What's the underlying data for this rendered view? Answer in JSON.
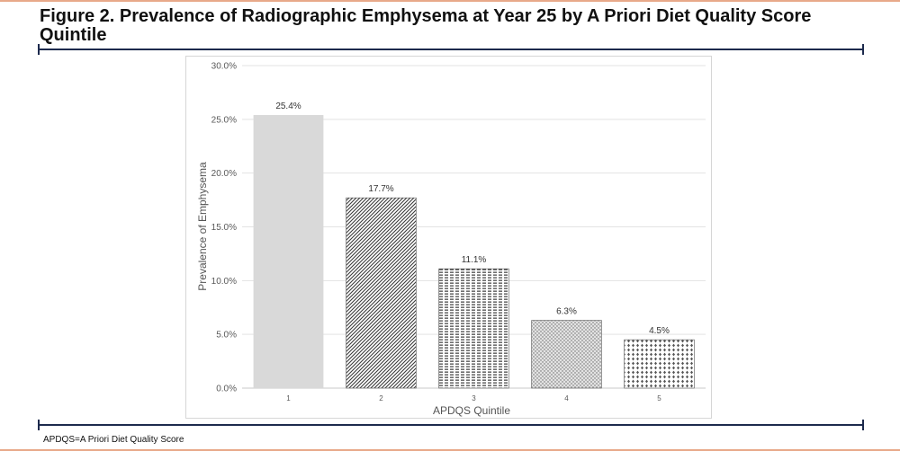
{
  "figure": {
    "title": "Figure 2. Prevalence of Radiographic Emphysema at Year 25 by A Priori Diet Quality Score Quintile",
    "footnote": "APDQS=A Priori Diet Quality Score"
  },
  "colors": {
    "rule": "#1d2a4d",
    "border_accent": "#e8a98a",
    "bar_fill": "#d9d9d9",
    "pattern_ink": "#3a3a3a"
  },
  "chart_data": {
    "type": "bar",
    "title": "",
    "xlabel": "APDQS Quintile",
    "ylabel": "Prevalence of Emphysema",
    "categories": [
      "1",
      "2",
      "3",
      "4",
      "5"
    ],
    "values": [
      25.4,
      17.7,
      11.1,
      6.3,
      4.5
    ],
    "data_labels": [
      "25.4%",
      "17.7%",
      "11.1%",
      "6.3%",
      "4.5%"
    ],
    "bar_patterns": [
      "solid",
      "diagonal-dense",
      "horizontal-dash",
      "dotted",
      "diamond-dots"
    ],
    "ylim": [
      0,
      30
    ],
    "yticks": [
      0,
      5,
      10,
      15,
      20,
      25,
      30
    ],
    "ytick_labels": [
      "0.0%",
      "5.0%",
      "10.0%",
      "15.0%",
      "20.0%",
      "25.0%",
      "30.0%"
    ],
    "grid": true,
    "legend": "none"
  }
}
